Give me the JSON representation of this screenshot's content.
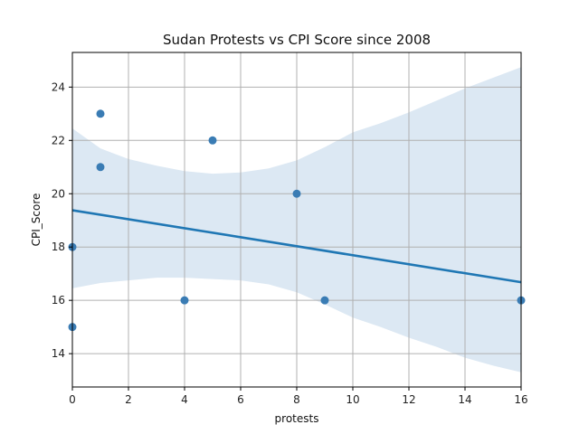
{
  "chart_data": {
    "type": "scatter",
    "title": "Sudan Protests vs CPI Score since 2008",
    "xlabel": "protests",
    "ylabel": "CPI_Score",
    "xlim": [
      0,
      16
    ],
    "ylim": [
      12.75,
      25.3
    ],
    "xticks": [
      0,
      2,
      4,
      6,
      8,
      10,
      12,
      14,
      16
    ],
    "yticks": [
      14,
      16,
      18,
      20,
      22,
      24
    ],
    "grid": true,
    "points": [
      {
        "x": 0,
        "y": 18
      },
      {
        "x": 0,
        "y": 15
      },
      {
        "x": 1,
        "y": 23
      },
      {
        "x": 1,
        "y": 21
      },
      {
        "x": 4,
        "y": 16
      },
      {
        "x": 5,
        "y": 22
      },
      {
        "x": 8,
        "y": 20
      },
      {
        "x": 9,
        "y": 16
      },
      {
        "x": 16,
        "y": 16
      }
    ],
    "regression": {
      "x": [
        0,
        16
      ],
      "y": [
        19.38,
        16.68
      ]
    },
    "confidence_band": {
      "x": [
        0,
        1,
        2,
        3,
        4,
        5,
        6,
        7,
        8,
        9,
        10,
        11,
        12,
        13,
        14,
        15,
        16
      ],
      "upper": [
        22.45,
        21.7,
        21.3,
        21.05,
        20.85,
        20.75,
        20.8,
        20.95,
        21.25,
        21.75,
        22.3,
        22.65,
        23.05,
        23.5,
        23.95,
        24.35,
        24.75
      ],
      "lower": [
        16.45,
        16.65,
        16.75,
        16.85,
        16.85,
        16.8,
        16.75,
        16.6,
        16.3,
        15.85,
        15.35,
        15.0,
        14.6,
        14.25,
        13.85,
        13.55,
        13.3
      ]
    },
    "colors": {
      "points": "#3a7cb4",
      "line": "#1f77b4",
      "band": "#dce8f3",
      "grid": "#b0b0b0"
    }
  }
}
